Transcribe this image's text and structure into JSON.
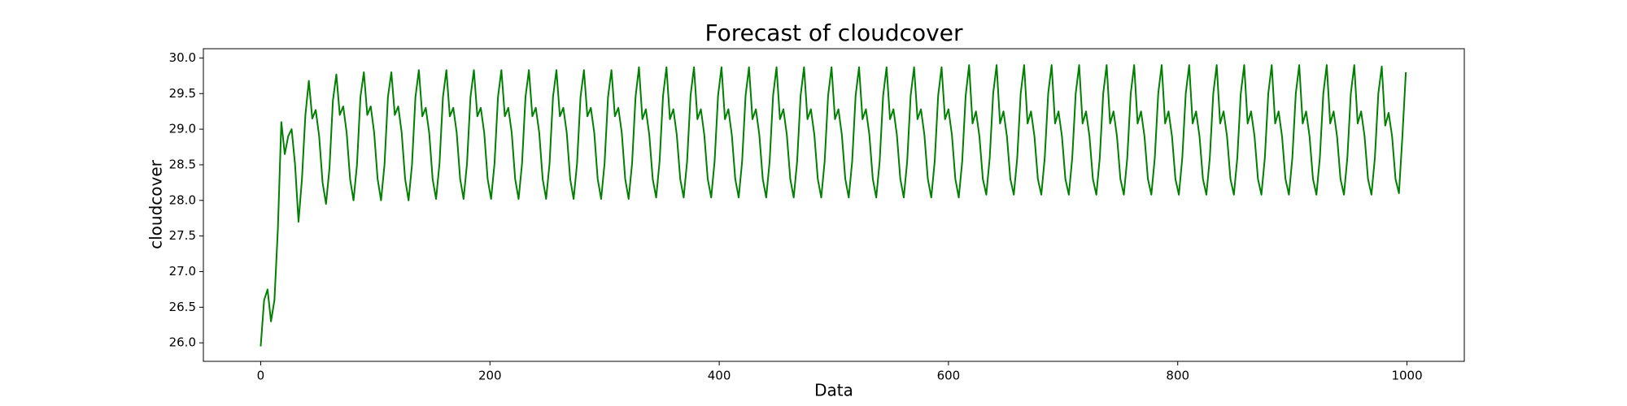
{
  "chart_data": {
    "type": "line",
    "title": "Forecast of cloudcover",
    "xlabel": "Data",
    "ylabel": "cloudcover",
    "color": "#008000",
    "x": [
      0,
      3,
      6,
      9,
      12,
      15,
      18,
      21,
      24,
      27,
      30,
      33,
      36,
      39,
      42,
      45,
      48,
      51,
      54,
      57,
      60,
      63,
      66,
      69,
      72,
      75,
      78,
      81,
      84,
      87,
      90,
      93,
      96,
      99,
      102,
      105,
      108,
      111,
      114,
      117,
      120,
      123,
      126,
      129,
      132,
      135,
      138,
      141,
      144,
      147,
      150,
      153,
      156,
      159,
      162,
      165,
      168,
      171,
      174,
      177,
      180,
      183,
      186,
      189,
      192,
      195,
      198,
      201,
      204,
      207,
      210,
      213,
      216,
      219,
      222,
      225,
      228,
      231,
      234,
      237,
      240,
      243,
      246,
      249,
      252,
      255,
      258,
      261,
      264,
      267,
      270,
      273,
      276,
      279,
      282,
      285,
      288,
      291,
      294,
      297,
      300,
      303,
      306,
      309,
      312,
      315,
      318,
      321,
      324,
      327,
      330,
      333,
      336,
      339,
      342,
      345,
      348,
      351,
      354,
      357,
      360,
      363,
      366,
      369,
      372,
      375,
      378,
      381,
      384,
      387,
      390,
      393,
      396,
      399,
      402,
      405,
      408,
      411,
      414,
      417,
      420,
      423,
      426,
      429,
      432,
      435,
      438,
      441,
      444,
      447,
      450,
      453,
      456,
      459,
      462,
      465,
      468,
      471,
      474,
      477,
      480,
      483,
      486,
      489,
      492,
      495,
      498,
      501,
      504,
      507,
      510,
      513,
      516,
      519,
      522,
      525,
      528,
      531,
      534,
      537,
      540,
      543,
      546,
      549,
      552,
      555,
      558,
      561,
      564,
      567,
      570,
      573,
      576,
      579,
      582,
      585,
      588,
      591,
      594,
      597,
      600,
      603,
      606,
      609,
      612,
      615,
      618,
      621,
      624,
      627,
      630,
      633,
      636,
      639,
      642,
      645,
      648,
      651,
      654,
      657,
      660,
      663,
      666,
      669,
      672,
      675,
      678,
      681,
      684,
      687,
      690,
      693,
      696,
      699,
      702,
      705,
      708,
      711,
      714,
      717,
      720,
      723,
      726,
      729,
      732,
      735,
      738,
      741,
      744,
      747,
      750,
      753,
      756,
      759,
      762,
      765,
      768,
      771,
      774,
      777,
      780,
      783,
      786,
      789,
      792,
      795,
      798,
      801,
      804,
      807,
      810,
      813,
      816,
      819,
      822,
      825,
      828,
      831,
      834,
      837,
      840,
      843,
      846,
      849,
      852,
      855,
      858,
      861,
      864,
      867,
      870,
      873,
      876,
      879,
      882,
      885,
      888,
      891,
      894,
      897,
      900,
      903,
      906,
      909,
      912,
      915,
      918,
      921,
      924,
      927,
      930,
      933,
      936,
      939,
      942,
      945,
      948,
      951,
      954,
      957,
      960,
      963,
      966,
      969,
      972,
      975,
      978,
      981,
      984,
      987,
      990,
      993,
      996,
      999
    ],
    "values": [
      25.95,
      26.6,
      26.75,
      26.3,
      26.6,
      27.6,
      29.1,
      28.65,
      28.9,
      29.0,
      28.5,
      27.7,
      28.3,
      29.2,
      29.68,
      29.15,
      29.27,
      28.9,
      28.25,
      27.95,
      28.45,
      29.4,
      29.77,
      29.2,
      29.32,
      28.95,
      28.3,
      28.0,
      28.5,
      29.45,
      29.8,
      29.2,
      29.32,
      28.95,
      28.3,
      28.0,
      28.5,
      29.45,
      29.8,
      29.2,
      29.32,
      28.95,
      28.3,
      28.0,
      28.5,
      29.45,
      29.83,
      29.18,
      29.3,
      28.95,
      28.3,
      28.02,
      28.52,
      29.45,
      29.83,
      29.18,
      29.3,
      28.95,
      28.3,
      28.02,
      28.52,
      29.45,
      29.83,
      29.18,
      29.3,
      28.95,
      28.3,
      28.02,
      28.52,
      29.45,
      29.83,
      29.18,
      29.3,
      28.95,
      28.3,
      28.02,
      28.52,
      29.45,
      29.83,
      29.18,
      29.3,
      28.95,
      28.3,
      28.02,
      28.52,
      29.45,
      29.83,
      29.18,
      29.3,
      28.95,
      28.3,
      28.02,
      28.52,
      29.45,
      29.83,
      29.18,
      29.3,
      28.95,
      28.3,
      28.02,
      28.52,
      29.45,
      29.83,
      29.18,
      29.3,
      28.95,
      28.3,
      28.02,
      28.52,
      29.45,
      29.87,
      29.14,
      29.28,
      28.92,
      28.3,
      28.04,
      28.55,
      29.47,
      29.87,
      29.14,
      29.28,
      28.92,
      28.3,
      28.04,
      28.55,
      29.47,
      29.87,
      29.14,
      29.28,
      28.92,
      28.3,
      28.04,
      28.55,
      29.47,
      29.87,
      29.14,
      29.28,
      28.92,
      28.3,
      28.04,
      28.55,
      29.47,
      29.87,
      29.14,
      29.28,
      28.92,
      28.3,
      28.04,
      28.55,
      29.47,
      29.87,
      29.14,
      29.28,
      28.92,
      28.3,
      28.04,
      28.55,
      29.47,
      29.87,
      29.14,
      29.28,
      28.92,
      28.3,
      28.04,
      28.55,
      29.47,
      29.87,
      29.14,
      29.28,
      28.92,
      28.3,
      28.04,
      28.55,
      29.47,
      29.87,
      29.14,
      29.28,
      28.92,
      28.3,
      28.04,
      28.55,
      29.47,
      29.87,
      29.14,
      29.28,
      28.92,
      28.3,
      28.04,
      28.55,
      29.47,
      29.87,
      29.14,
      29.28,
      28.92,
      28.3,
      28.04,
      28.55,
      29.47,
      29.87,
      29.14,
      29.28,
      28.92,
      28.3,
      28.04,
      28.55,
      29.47,
      29.9,
      29.08,
      29.25,
      28.9,
      28.3,
      28.08,
      28.6,
      29.5,
      29.9,
      29.08,
      29.25,
      28.9,
      28.3,
      28.08,
      28.6,
      29.5,
      29.9,
      29.08,
      29.25,
      28.9,
      28.3,
      28.08,
      28.6,
      29.5,
      29.9,
      29.08,
      29.25,
      28.9,
      28.3,
      28.08,
      28.6,
      29.5,
      29.9,
      29.08,
      29.25,
      28.9,
      28.3,
      28.08,
      28.6,
      29.5,
      29.9,
      29.08,
      29.25,
      28.9,
      28.3,
      28.08,
      28.6,
      29.5,
      29.9,
      29.08,
      29.25,
      28.9,
      28.3,
      28.08,
      28.6,
      29.5,
      29.9,
      29.08,
      29.25,
      28.9,
      28.3,
      28.08,
      28.6,
      29.5,
      29.9,
      29.08,
      29.25,
      28.9,
      28.3,
      28.08,
      28.6,
      29.5,
      29.9,
      29.08,
      29.25,
      28.9,
      28.3,
      28.08,
      28.6,
      29.5,
      29.9,
      29.08,
      29.25,
      28.9,
      28.3,
      28.08,
      28.6,
      29.5,
      29.9,
      29.08,
      29.25,
      28.9,
      28.3,
      28.08,
      28.6,
      29.5,
      29.9,
      29.08,
      29.25,
      28.9,
      28.3,
      28.08,
      28.6,
      29.5,
      29.9,
      29.08,
      29.25,
      28.9,
      28.3,
      28.08,
      28.6,
      29.5,
      29.9,
      29.08,
      29.25,
      28.9,
      28.3,
      28.08,
      28.6,
      29.5,
      29.88,
      29.05,
      29.23,
      28.9,
      28.3,
      28.1,
      28.9,
      29.8
    ],
    "xlim": [
      -50,
      1050
    ],
    "xticks": [
      0,
      200,
      400,
      600,
      800,
      1000
    ],
    "ylim": [
      25.74,
      30.13
    ],
    "yticks": [
      {
        "value": 26,
        "label": "26.0"
      },
      {
        "value": 26.5,
        "label": "26.5"
      },
      {
        "value": 27,
        "label": "27.0"
      },
      {
        "value": 27.5,
        "label": "27.5"
      },
      {
        "value": 28,
        "label": "28.0"
      },
      {
        "value": 28.5,
        "label": "28.5"
      },
      {
        "value": 29,
        "label": "29.0"
      },
      {
        "value": 29.5,
        "label": "29.5"
      },
      {
        "value": 30,
        "label": "30.0"
      }
    ],
    "grid": false
  }
}
